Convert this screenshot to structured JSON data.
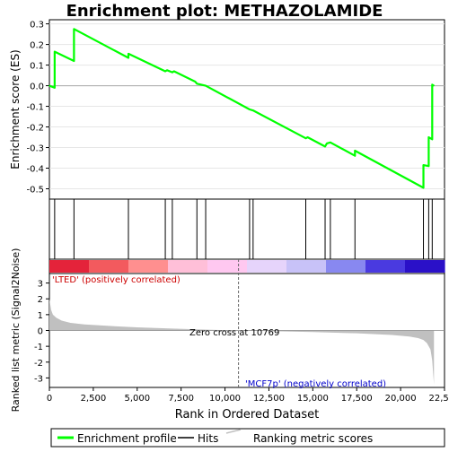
{
  "chart_data": {
    "type": "line",
    "title": "Enrichment plot: METHAZOLAMIDE",
    "es_panel": {
      "ylabel": "Enrichment score (ES)",
      "ylim": [
        -0.55,
        0.32
      ],
      "yticks": [
        0.3,
        0.2,
        0.1,
        0.0,
        -0.1,
        -0.2,
        -0.3,
        -0.4,
        -0.5
      ],
      "ytick_labels": [
        "0.3",
        "0.2",
        "0.1",
        "0.0",
        "-0.1",
        "-0.2",
        "-0.3",
        "-0.4",
        "-0.5"
      ],
      "series": [
        {
          "name": "Enrichment profile",
          "color": "#00ff00",
          "x": [
            0,
            300,
            300,
            1400,
            1400,
            4500,
            4500,
            6600,
            6700,
            7000,
            7100,
            8300,
            8400,
            8900,
            11400,
            11600,
            14600,
            14700,
            15700,
            15800,
            16000,
            17400,
            17400,
            21300,
            21300,
            21600,
            21600,
            21800,
            21800,
            21900
          ],
          "y": [
            0.0,
            -0.01,
            0.165,
            0.12,
            0.275,
            0.135,
            0.155,
            0.07,
            0.075,
            0.065,
            0.07,
            0.02,
            0.01,
            0.0,
            -0.115,
            -0.12,
            -0.255,
            -0.25,
            -0.295,
            -0.28,
            -0.275,
            -0.34,
            -0.315,
            -0.495,
            -0.385,
            -0.39,
            -0.25,
            -0.26,
            0.005,
            0.0
          ]
        }
      ]
    },
    "hits_x": [
      300,
      1400,
      4500,
      6600,
      7000,
      8400,
      8900,
      11400,
      11600,
      14600,
      15700,
      16000,
      17400,
      21300,
      21600,
      21800
    ],
    "gradient_colors": [
      "#e4233a",
      "#f35a5e",
      "#ff8f8f",
      "#ffbfd8",
      "#ffc8f0",
      "#e6d4fb",
      "#c8c2f8",
      "#8888f0",
      "#4a3ae0",
      "#2a10c8"
    ],
    "metric_panel": {
      "ylabel": "Ranked list metric (Signal2Noise)",
      "ylim": [
        -3.6,
        3.6
      ],
      "yticks": [
        3,
        2,
        1,
        0,
        -1,
        -2,
        -3
      ],
      "ytick_labels": [
        "3",
        "2",
        "1",
        "0",
        "-1",
        "-2",
        "-3"
      ],
      "fill_color": "#c0c0c0",
      "profile": {
        "x": [
          0,
          100,
          200,
          400,
          700,
          1200,
          2000,
          3500,
          5000,
          7000,
          9000,
          10769,
          12500,
          15000,
          17500,
          19500,
          20500,
          21000,
          21300,
          21500,
          21700,
          21800,
          21900
        ],
        "y": [
          2.0,
          1.3,
          1.0,
          0.8,
          0.62,
          0.48,
          0.38,
          0.28,
          0.2,
          0.12,
          0.05,
          0.0,
          -0.04,
          -0.1,
          -0.18,
          -0.28,
          -0.38,
          -0.48,
          -0.6,
          -0.8,
          -1.2,
          -1.9,
          -3.4
        ]
      },
      "label_pos": "'LTED' (positively correlated)",
      "label_neg": "'MCF7p' (negatively correlated)",
      "zero_cross_label": "Zero cross at 10769",
      "zero_cross_x": 10769
    },
    "x_axis": {
      "xlabel": "Rank in Ordered Dataset",
      "xlim": [
        0,
        22500
      ],
      "xticks": [
        0,
        2500,
        5000,
        7500,
        10000,
        12500,
        15000,
        17500,
        20000,
        22500
      ],
      "xtick_labels": [
        "0",
        "2,500",
        "5,000",
        "7,500",
        "10,000",
        "12,500",
        "15,000",
        "17,500",
        "20,000",
        "22,500"
      ]
    },
    "legend": {
      "placement": "bottom",
      "items": [
        {
          "label": "Enrichment profile",
          "color": "#00ff00"
        },
        {
          "label": "Hits",
          "color": "#000000"
        },
        {
          "label": "Ranking metric scores",
          "color": "#c0c0c0"
        }
      ]
    }
  }
}
